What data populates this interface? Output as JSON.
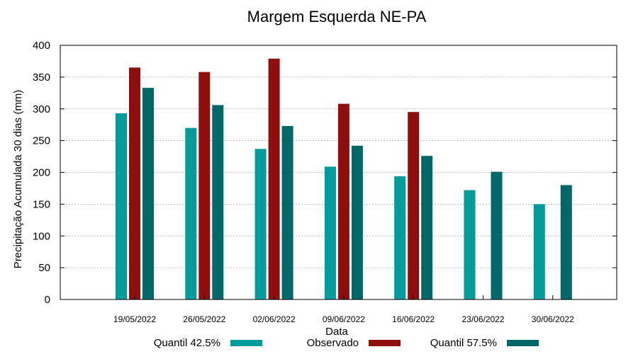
{
  "chart_data": {
    "type": "bar",
    "title": "Margem Esquerda NE-PA",
    "xlabel": "Data",
    "ylabel": "Precipitação Acumulada 30 dias (mm)",
    "ylim": [
      0,
      400
    ],
    "yticks": [
      0,
      50,
      100,
      150,
      200,
      250,
      300,
      350,
      400
    ],
    "grid": true,
    "legend_position": "bottom",
    "categories": [
      "19/05/2022",
      "26/05/2022",
      "02/06/2022",
      "09/06/2022",
      "16/06/2022",
      "23/06/2022",
      "30/06/2022"
    ],
    "series": [
      {
        "name": "Quantil 42.5%",
        "color": "#009b9b",
        "values": [
          293,
          270,
          237,
          209,
          194,
          172,
          150
        ]
      },
      {
        "name": "Observado",
        "color": "#8f0e0e",
        "values": [
          365,
          358,
          379,
          308,
          295,
          null,
          null
        ]
      },
      {
        "name": "Quantil 57.5%",
        "color": "#006868",
        "values": [
          333,
          306,
          273,
          242,
          226,
          201,
          180
        ]
      }
    ]
  }
}
